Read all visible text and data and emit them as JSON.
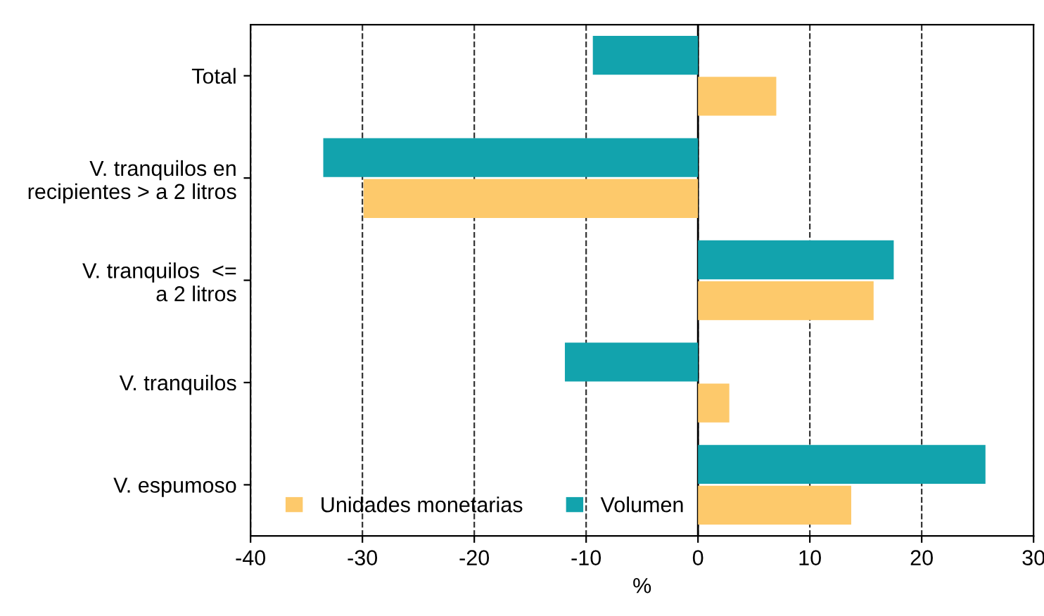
{
  "chart_data": {
    "type": "bar",
    "orientation": "horizontal",
    "xlabel": "%",
    "categories": [
      "Total",
      "V. tranquilos en\nrecipientes > a 2 litros",
      "V. tranquilos  <=\na 2 litros",
      "V. tranquilos",
      "V. espumoso"
    ],
    "series": [
      {
        "name": "Unidades monetarias",
        "color": "#fdc96b",
        "values": [
          7.0,
          -29.9,
          15.7,
          2.8,
          13.7
        ]
      },
      {
        "name": "Volumen",
        "color": "#12a3ad",
        "values": [
          -9.4,
          -33.5,
          17.5,
          -11.9,
          25.7
        ]
      }
    ],
    "xlim": [
      -40,
      30
    ],
    "xticks": [
      -40,
      -30,
      -20,
      -10,
      0,
      10,
      20,
      30
    ],
    "ref_lines": [
      {
        "axis": "x",
        "value": 0,
        "color": "#000000",
        "line_style": "solid"
      }
    ],
    "grid": "x",
    "legend": "bottom left"
  }
}
